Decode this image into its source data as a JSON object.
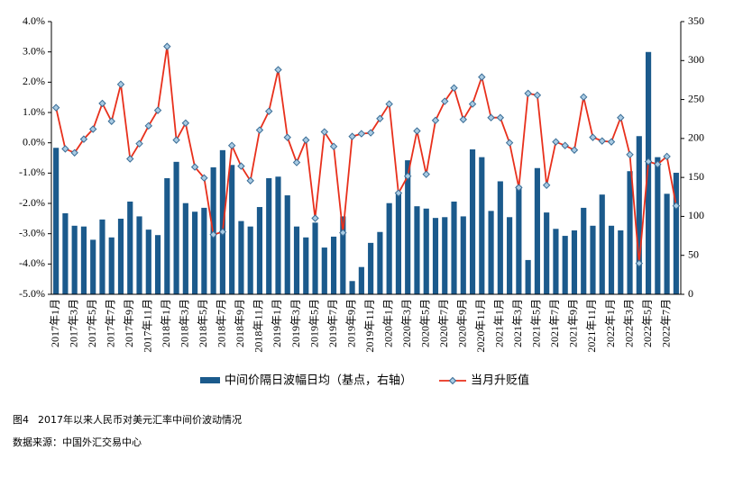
{
  "chart_data": {
    "type": "bar_line",
    "categories": [
      "2017年1月",
      null,
      "2017年3月",
      null,
      "2017年5月",
      null,
      "2017年7月",
      null,
      "2017年9月",
      null,
      "2017年11月",
      null,
      "2018年1月",
      null,
      "2018年3月",
      null,
      "2018年5月",
      null,
      "2018年7月",
      null,
      "2018年9月",
      null,
      "2018年11月",
      null,
      "2019年1月",
      null,
      "2019年3月",
      null,
      "2019年5月",
      null,
      "2019年7月",
      null,
      "2019年9月",
      null,
      "2019年11月",
      null,
      "2020年1月",
      null,
      "2020年3月",
      null,
      "2020年5月",
      null,
      "2020年7月",
      null,
      "2020年9月",
      null,
      "2020年11月",
      null,
      "2021年1月",
      null,
      "2021年3月",
      null,
      "2021年5月",
      null,
      "2021年7月",
      null,
      "2021年9月",
      null,
      "2021年11月",
      null,
      "2022年1月",
      null,
      "2022年3月",
      null,
      "2022年5月",
      null,
      "2022年7月",
      null
    ],
    "series": [
      {
        "name": "中间价隔日波幅日均（基点，右轴）",
        "type": "bar",
        "axis": "y2",
        "color": "#1b5a8c",
        "values": [
          188,
          104,
          88,
          87,
          70,
          96,
          73,
          97,
          119,
          100,
          83,
          76,
          149,
          170,
          117,
          106,
          111,
          163,
          185,
          166,
          94,
          87,
          112,
          149,
          151,
          127,
          87,
          73,
          92,
          60,
          74,
          100,
          17,
          35,
          66,
          80,
          117,
          130,
          172,
          113,
          110,
          98,
          99,
          119,
          100,
          186,
          176,
          107,
          145,
          99,
          139,
          44,
          162,
          105,
          84,
          75,
          82,
          111,
          88,
          128,
          88,
          82,
          158,
          203,
          311,
          176,
          129,
          156
        ]
      },
      {
        "name": "当月升贬值",
        "type": "line",
        "color": "#e8301c",
        "marker_color": "#a9cbe3",
        "values": [
          1.16,
          -0.2,
          -0.33,
          0.12,
          0.45,
          1.3,
          0.71,
          1.93,
          -0.53,
          -0.03,
          0.56,
          1.07,
          3.18,
          0.09,
          0.65,
          -0.8,
          -1.16,
          -3.03,
          -2.94,
          -0.09,
          -0.77,
          -1.25,
          0.42,
          1.04,
          2.41,
          0.18,
          -0.65,
          0.09,
          -2.49,
          0.36,
          -0.12,
          -2.97,
          0.21,
          0.3,
          0.33,
          0.8,
          1.28,
          -1.66,
          -1.1,
          0.39,
          -1.04,
          0.74,
          1.37,
          1.81,
          0.77,
          1.28,
          2.17,
          0.83,
          0.83,
          0,
          -1.48,
          1.63,
          1.57,
          -1.4,
          0.03,
          -0.09,
          -0.24,
          1.51,
          0.18,
          0.06,
          0.03,
          0.83,
          -0.39,
          -3.98,
          -0.62,
          -0.71,
          -0.45,
          -2.08
        ]
      }
    ],
    "ylim": [
      -5,
      4
    ],
    "yticks": [
      {
        "value": -5,
        "label": "-5.0%"
      },
      {
        "value": -4,
        "label": "-4.0%"
      },
      {
        "value": -3,
        "label": "-3.0%"
      },
      {
        "value": -2,
        "label": "-2.0%"
      },
      {
        "value": -1,
        "label": "-1.0%"
      },
      {
        "value": 0,
        "label": "0.0%"
      },
      {
        "value": 1,
        "label": "1.0%"
      },
      {
        "value": 2,
        "label": "2.0%"
      },
      {
        "value": 3,
        "label": "3.0%"
      },
      {
        "value": 4,
        "label": "4.0%"
      }
    ],
    "y2lim": [
      0,
      350
    ],
    "y2ticks": [
      0,
      50,
      100,
      150,
      200,
      250,
      300,
      350
    ],
    "legend": "bottom",
    "figure_label": "图4",
    "caption": "2017年以来人民币对美元汇率中间价波动情况",
    "source": "数据来源：中国外汇交易中心"
  }
}
